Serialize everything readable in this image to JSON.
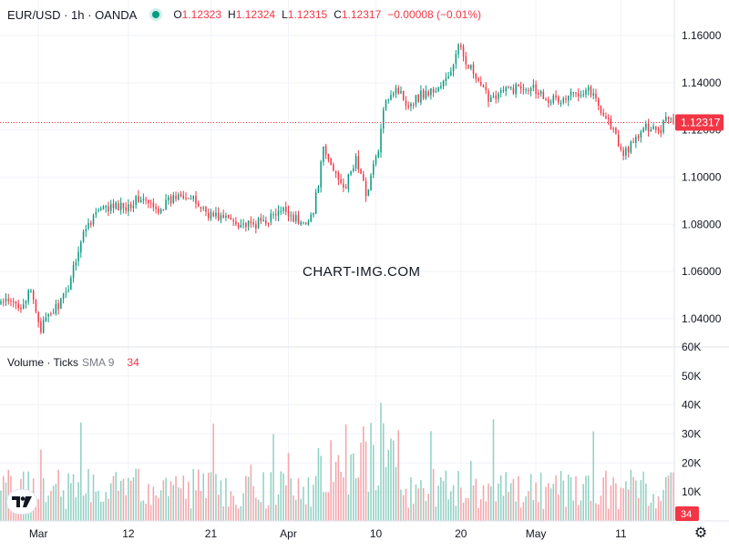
{
  "header": {
    "symbol": "EUR/USD · 1h · OANDA",
    "o_label": "O",
    "o_value": "1.12323",
    "h_label": "H",
    "h_value": "1.12324",
    "l_label": "L",
    "l_value": "1.12315",
    "c_label": "C",
    "c_value": "1.12317",
    "change": "−0.00008 (−0.01%)"
  },
  "volume_header": {
    "title": "Volume · Ticks",
    "sma": "SMA 9",
    "value": "34"
  },
  "watermark": "CHART-IMG.COM",
  "logo_text": "TV",
  "colors": {
    "up": "#089981",
    "down": "#f23645",
    "up_vol": "#8fd0c2",
    "down_vol": "#f5a3a9",
    "grid": "#f0f3fa"
  },
  "icons": {
    "settings": "gear-icon",
    "status": "market-open-dot-icon",
    "logo": "tradingview-logo-icon"
  },
  "chart_data": {
    "type": "candlestick",
    "price_axis": {
      "ticks": [
        "1.16000",
        "1.14000",
        "1.12000",
        "1.10000",
        "1.08000",
        "1.06000",
        "1.04000"
      ],
      "tick_values": [
        1.16,
        1.14,
        1.12,
        1.1,
        1.08,
        1.06,
        1.04
      ],
      "range": [
        1.028,
        1.1635
      ],
      "last_price": 1.12317,
      "last_price_label": "1.12317"
    },
    "volume_axis": {
      "ticks": [
        "60K",
        "50K",
        "40K",
        "30K",
        "20K",
        "10K"
      ],
      "tick_values": [
        60000,
        50000,
        40000,
        30000,
        20000,
        10000
      ],
      "range": [
        0,
        60000
      ],
      "last_label": "34"
    },
    "time_axis": {
      "labels": [
        "Mar",
        "12",
        "21",
        "Apr",
        "10",
        "20",
        "May",
        "11"
      ],
      "label_bar_index": [
        15,
        51,
        84,
        115,
        150,
        184,
        214,
        248
      ]
    },
    "bar_count": 270,
    "price_anchors": [
      [
        0,
        1.047
      ],
      [
        8,
        1.046
      ],
      [
        12,
        1.051
      ],
      [
        16,
        1.036
      ],
      [
        20,
        1.042
      ],
      [
        26,
        1.05
      ],
      [
        30,
        1.066
      ],
      [
        34,
        1.079
      ],
      [
        38,
        1.085
      ],
      [
        44,
        1.087
      ],
      [
        50,
        1.088
      ],
      [
        56,
        1.091
      ],
      [
        62,
        1.086
      ],
      [
        68,
        1.09
      ],
      [
        72,
        1.094
      ],
      [
        78,
        1.089
      ],
      [
        84,
        1.084
      ],
      [
        92,
        1.082
      ],
      [
        100,
        1.079
      ],
      [
        106,
        1.082
      ],
      [
        114,
        1.086
      ],
      [
        120,
        1.08
      ],
      [
        125,
        1.085
      ],
      [
        129,
        1.111
      ],
      [
        133,
        1.103
      ],
      [
        138,
        1.096
      ],
      [
        142,
        1.108
      ],
      [
        146,
        1.093
      ],
      [
        151,
        1.112
      ],
      [
        154,
        1.134
      ],
      [
        158,
        1.138
      ],
      [
        163,
        1.131
      ],
      [
        168,
        1.135
      ],
      [
        174,
        1.137
      ],
      [
        179,
        1.142
      ],
      [
        183,
        1.155
      ],
      [
        187,
        1.148
      ],
      [
        191,
        1.139
      ],
      [
        195,
        1.134
      ],
      [
        200,
        1.136
      ],
      [
        206,
        1.138
      ],
      [
        212,
        1.139
      ],
      [
        218,
        1.134
      ],
      [
        224,
        1.132
      ],
      [
        230,
        1.136
      ],
      [
        235,
        1.138
      ],
      [
        240,
        1.129
      ],
      [
        245,
        1.12
      ],
      [
        248,
        1.11
      ],
      [
        252,
        1.113
      ],
      [
        256,
        1.119
      ],
      [
        260,
        1.122
      ],
      [
        264,
        1.12
      ],
      [
        266,
        1.127
      ],
      [
        269,
        1.12317
      ]
    ]
  }
}
